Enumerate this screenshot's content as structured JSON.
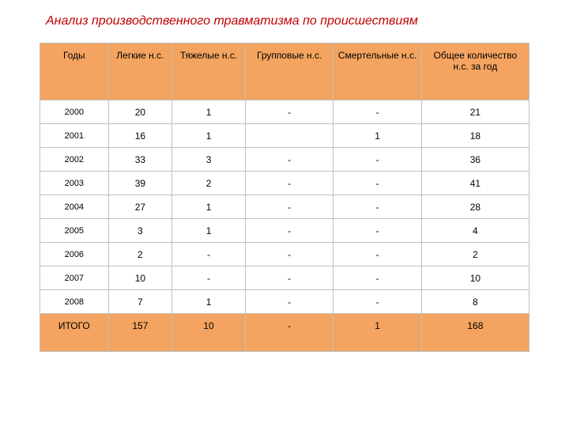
{
  "title": "Анализ производственного травматизма по происшествиям",
  "table": {
    "type": "table",
    "header_bg": "#f4a460",
    "totals_bg": "#f4a460",
    "border_color": "#bfbfbf",
    "text_color": "#000000",
    "title_color": "#c00000",
    "font_family": "Arial",
    "header_fontsize": 12,
    "body_fontsize": 12,
    "year_fontsize": 11,
    "columns": [
      {
        "label": "Годы",
        "width_pct": 14
      },
      {
        "label": "Легкие н.с.",
        "width_pct": 13
      },
      {
        "label": "Тяжелые н.с.",
        "width_pct": 15
      },
      {
        "label": "Групповые н.с.",
        "width_pct": 18
      },
      {
        "label": "Смертельные н.с.",
        "width_pct": 18
      },
      {
        "label": "Общее количество н.с. за год",
        "width_pct": 22
      }
    ],
    "rows": [
      [
        "2000",
        "20",
        "1",
        "-",
        "-",
        "21"
      ],
      [
        "2001",
        "16",
        "1",
        "",
        "1",
        "18"
      ],
      [
        "2002",
        "33",
        "3",
        "-",
        "-",
        "36"
      ],
      [
        "2003",
        "39",
        "2",
        "-",
        "-",
        "41"
      ],
      [
        "2004",
        "27",
        "1",
        "-",
        "-",
        "28"
      ],
      [
        "2005",
        "3",
        "1",
        "-",
        "-",
        "4"
      ],
      [
        "2006",
        "2",
        "-",
        "-",
        "-",
        "2"
      ],
      [
        "2007",
        "10",
        "-",
        "-",
        "-",
        "10"
      ],
      [
        "2008",
        "7",
        "1",
        "-",
        "-",
        "8"
      ]
    ],
    "totals": [
      "ИТОГО",
      "157",
      "10",
      "-",
      "1",
      "168"
    ]
  }
}
